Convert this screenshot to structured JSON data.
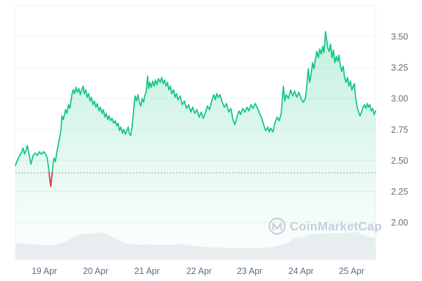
{
  "chart_data": {
    "type": "line",
    "title": "",
    "watermark": "CoinMarketCap",
    "colors": {
      "line_up": "#16C784",
      "line_down": "#EA3943",
      "area_fill_top": "rgba(22,199,132,0.26)",
      "area_fill_mid": "rgba(22,199,132,0.07)",
      "area_fill_bottom": "rgba(22,199,132,0.01)",
      "grid": "#EFF2F5",
      "axis_label": "#616E85",
      "reference_dotted": "#8B919E",
      "volume_fill": "#EDEFF2",
      "watermark": "#C7CEDB",
      "background": "#FFFFFF"
    },
    "x_axis": {
      "ticks": [
        {
          "label": "19 Apr",
          "position": 0.0801
        },
        {
          "label": "20 Apr",
          "position": 0.2227
        },
        {
          "label": "21 Apr",
          "position": 0.3652
        },
        {
          "label": "22 Apr",
          "position": 0.5098
        },
        {
          "label": "23 Apr",
          "position": 0.6504
        },
        {
          "label": "24 Apr",
          "position": 0.793
        },
        {
          "label": "25 Apr",
          "position": 0.9336
        }
      ]
    },
    "y_axis": {
      "gridline_values": [
        3.75,
        3.5,
        3.25,
        3.0,
        2.75,
        2.5,
        2.25,
        2.0
      ],
      "ticks": [
        {
          "label": "3.50",
          "value": 3.5
        },
        {
          "label": "3.25",
          "value": 3.25
        },
        {
          "label": "3.00",
          "value": 3.0
        },
        {
          "label": "2.75",
          "value": 2.75
        },
        {
          "label": "2.50",
          "value": 2.5
        },
        {
          "label": "2.25",
          "value": 2.25
        },
        {
          "label": "2.00",
          "value": 2.0
        }
      ]
    },
    "reference_line": {
      "value": 2.4,
      "style": "dotted"
    },
    "series": [
      {
        "name": "price",
        "points": [
          [
            0.0,
            2.46
          ],
          [
            0.004,
            2.49
          ],
          [
            0.01,
            2.53
          ],
          [
            0.016,
            2.56
          ],
          [
            0.021,
            2.6
          ],
          [
            0.025,
            2.55
          ],
          [
            0.029,
            2.58
          ],
          [
            0.033,
            2.62
          ],
          [
            0.039,
            2.53
          ],
          [
            0.043,
            2.47
          ],
          [
            0.049,
            2.54
          ],
          [
            0.055,
            2.56
          ],
          [
            0.061,
            2.54
          ],
          [
            0.066,
            2.57
          ],
          [
            0.072,
            2.55
          ],
          [
            0.078,
            2.57
          ],
          [
            0.084,
            2.55
          ],
          [
            0.088,
            2.52
          ],
          [
            0.092,
            2.44
          ],
          [
            0.096,
            2.33
          ],
          [
            0.098,
            2.29
          ],
          [
            0.101,
            2.37
          ],
          [
            0.104,
            2.46
          ],
          [
            0.107,
            2.52
          ],
          [
            0.111,
            2.49
          ],
          [
            0.115,
            2.57
          ],
          [
            0.119,
            2.63
          ],
          [
            0.123,
            2.69
          ],
          [
            0.127,
            2.76
          ],
          [
            0.129,
            2.86
          ],
          [
            0.133,
            2.83
          ],
          [
            0.139,
            2.91
          ],
          [
            0.143,
            2.88
          ],
          [
            0.147,
            2.95
          ],
          [
            0.151,
            2.92
          ],
          [
            0.156,
            3.02
          ],
          [
            0.16,
            3.07
          ],
          [
            0.164,
            3.04
          ],
          [
            0.168,
            3.09
          ],
          [
            0.172,
            3.05
          ],
          [
            0.176,
            3.08
          ],
          [
            0.18,
            3.03
          ],
          [
            0.184,
            3.07
          ],
          [
            0.188,
            3.1
          ],
          [
            0.191,
            3.04
          ],
          [
            0.195,
            3.07
          ],
          [
            0.199,
            3.01
          ],
          [
            0.203,
            3.04
          ],
          [
            0.207,
            2.98
          ],
          [
            0.211,
            3.01
          ],
          [
            0.215,
            2.95
          ],
          [
            0.219,
            2.98
          ],
          [
            0.223,
            2.93
          ],
          [
            0.227,
            2.96
          ],
          [
            0.232,
            2.9
          ],
          [
            0.236,
            2.93
          ],
          [
            0.24,
            2.88
          ],
          [
            0.244,
            2.91
          ],
          [
            0.248,
            2.85
          ],
          [
            0.252,
            2.88
          ],
          [
            0.256,
            2.83
          ],
          [
            0.26,
            2.86
          ],
          [
            0.264,
            2.82
          ],
          [
            0.268,
            2.84
          ],
          [
            0.273,
            2.8
          ],
          [
            0.277,
            2.82
          ],
          [
            0.281,
            2.78
          ],
          [
            0.285,
            2.8
          ],
          [
            0.289,
            2.74
          ],
          [
            0.293,
            2.77
          ],
          [
            0.297,
            2.72
          ],
          [
            0.301,
            2.75
          ],
          [
            0.305,
            2.71
          ],
          [
            0.309,
            2.74
          ],
          [
            0.313,
            2.77
          ],
          [
            0.316,
            2.72
          ],
          [
            0.32,
            2.7
          ],
          [
            0.324,
            2.78
          ],
          [
            0.328,
            2.9
          ],
          [
            0.332,
            3.02
          ],
          [
            0.336,
            2.98
          ],
          [
            0.34,
            3.03
          ],
          [
            0.344,
            2.97
          ],
          [
            0.348,
            2.94
          ],
          [
            0.352,
            3.0
          ],
          [
            0.356,
            2.97
          ],
          [
            0.359,
            3.02
          ],
          [
            0.363,
            3.06
          ],
          [
            0.367,
            3.18
          ],
          [
            0.37,
            3.08
          ],
          [
            0.373,
            3.13
          ],
          [
            0.377,
            3.09
          ],
          [
            0.381,
            3.14
          ],
          [
            0.385,
            3.1
          ],
          [
            0.389,
            3.15
          ],
          [
            0.393,
            3.11
          ],
          [
            0.397,
            3.16
          ],
          [
            0.402,
            3.13
          ],
          [
            0.406,
            3.17
          ],
          [
            0.41,
            3.12
          ],
          [
            0.414,
            3.15
          ],
          [
            0.418,
            3.1
          ],
          [
            0.422,
            3.13
          ],
          [
            0.426,
            3.07
          ],
          [
            0.43,
            3.1
          ],
          [
            0.434,
            3.04
          ],
          [
            0.439,
            3.07
          ],
          [
            0.443,
            3.01
          ],
          [
            0.447,
            3.04
          ],
          [
            0.451,
            2.99
          ],
          [
            0.457,
            3.02
          ],
          [
            0.463,
            2.95
          ],
          [
            0.469,
            2.98
          ],
          [
            0.475,
            2.92
          ],
          [
            0.481,
            2.95
          ],
          [
            0.487,
            2.89
          ],
          [
            0.492,
            2.93
          ],
          [
            0.498,
            2.88
          ],
          [
            0.504,
            2.91
          ],
          [
            0.51,
            2.85
          ],
          [
            0.516,
            2.89
          ],
          [
            0.521,
            2.84
          ],
          [
            0.527,
            2.88
          ],
          [
            0.533,
            2.94
          ],
          [
            0.539,
            2.91
          ],
          [
            0.545,
            2.98
          ],
          [
            0.551,
            3.03
          ],
          [
            0.555,
            2.99
          ],
          [
            0.559,
            3.04
          ],
          [
            0.563,
            3.01
          ],
          [
            0.568,
            3.03
          ],
          [
            0.574,
            2.97
          ],
          [
            0.58,
            2.93
          ],
          [
            0.586,
            2.96
          ],
          [
            0.592,
            2.89
          ],
          [
            0.598,
            2.92
          ],
          [
            0.604,
            2.83
          ],
          [
            0.609,
            2.79
          ],
          [
            0.613,
            2.83
          ],
          [
            0.617,
            2.87
          ],
          [
            0.621,
            2.9
          ],
          [
            0.625,
            2.87
          ],
          [
            0.631,
            2.92
          ],
          [
            0.637,
            2.89
          ],
          [
            0.643,
            2.93
          ],
          [
            0.648,
            2.9
          ],
          [
            0.654,
            2.95
          ],
          [
            0.66,
            2.92
          ],
          [
            0.666,
            2.96
          ],
          [
            0.672,
            2.92
          ],
          [
            0.678,
            2.88
          ],
          [
            0.684,
            2.84
          ],
          [
            0.689,
            2.79
          ],
          [
            0.695,
            2.74
          ],
          [
            0.701,
            2.77
          ],
          [
            0.705,
            2.73
          ],
          [
            0.709,
            2.76
          ],
          [
            0.715,
            2.73
          ],
          [
            0.721,
            2.81
          ],
          [
            0.727,
            2.85
          ],
          [
            0.732,
            2.82
          ],
          [
            0.738,
            2.88
          ],
          [
            0.744,
            3.1
          ],
          [
            0.748,
            2.98
          ],
          [
            0.752,
            3.03
          ],
          [
            0.758,
            3.0
          ],
          [
            0.764,
            3.07
          ],
          [
            0.77,
            3.02
          ],
          [
            0.775,
            3.06
          ],
          [
            0.781,
            3.01
          ],
          [
            0.787,
            3.05
          ],
          [
            0.793,
            3.0
          ],
          [
            0.799,
            2.97
          ],
          [
            0.805,
            3.0
          ],
          [
            0.809,
            3.1
          ],
          [
            0.813,
            3.24
          ],
          [
            0.817,
            3.13
          ],
          [
            0.821,
            3.2
          ],
          [
            0.825,
            3.29
          ],
          [
            0.829,
            3.24
          ],
          [
            0.833,
            3.32
          ],
          [
            0.837,
            3.38
          ],
          [
            0.841,
            3.33
          ],
          [
            0.845,
            3.4
          ],
          [
            0.849,
            3.36
          ],
          [
            0.853,
            3.42
          ],
          [
            0.856,
            3.37
          ],
          [
            0.859,
            3.45
          ],
          [
            0.861,
            3.54
          ],
          [
            0.864,
            3.48
          ],
          [
            0.867,
            3.41
          ],
          [
            0.871,
            3.38
          ],
          [
            0.875,
            3.44
          ],
          [
            0.879,
            3.33
          ],
          [
            0.883,
            3.39
          ],
          [
            0.887,
            3.29
          ],
          [
            0.891,
            3.34
          ],
          [
            0.895,
            3.3
          ],
          [
            0.898,
            3.35
          ],
          [
            0.902,
            3.27
          ],
          [
            0.906,
            3.22
          ],
          [
            0.91,
            3.26
          ],
          [
            0.914,
            3.17
          ],
          [
            0.918,
            3.13
          ],
          [
            0.922,
            3.17
          ],
          [
            0.926,
            3.1
          ],
          [
            0.93,
            3.14
          ],
          [
            0.934,
            3.07
          ],
          [
            0.938,
            3.1
          ],
          [
            0.941,
            3.12
          ],
          [
            0.945,
            3.0
          ],
          [
            0.949,
            2.93
          ],
          [
            0.953,
            2.89
          ],
          [
            0.957,
            2.86
          ],
          [
            0.961,
            2.89
          ],
          [
            0.965,
            2.93
          ],
          [
            0.969,
            2.95
          ],
          [
            0.973,
            2.92
          ],
          [
            0.977,
            2.96
          ],
          [
            0.98,
            2.93
          ],
          [
            0.984,
            2.95
          ],
          [
            0.988,
            2.9
          ],
          [
            0.992,
            2.92
          ],
          [
            0.996,
            2.87
          ],
          [
            1.0,
            2.9
          ]
        ]
      }
    ],
    "volume": {
      "points": [
        [
          0.0,
          0.6
        ],
        [
          0.02,
          0.58
        ],
        [
          0.04,
          0.56
        ],
        [
          0.06,
          0.54
        ],
        [
          0.08,
          0.53
        ],
        [
          0.1,
          0.52
        ],
        [
          0.115,
          0.56
        ],
        [
          0.13,
          0.62
        ],
        [
          0.145,
          0.7
        ],
        [
          0.16,
          0.8
        ],
        [
          0.175,
          0.88
        ],
        [
          0.19,
          0.92
        ],
        [
          0.205,
          0.94
        ],
        [
          0.22,
          0.93
        ],
        [
          0.23,
          0.96
        ],
        [
          0.237,
          1.0
        ],
        [
          0.245,
          0.95
        ],
        [
          0.26,
          0.88
        ],
        [
          0.275,
          0.78
        ],
        [
          0.29,
          0.68
        ],
        [
          0.305,
          0.6
        ],
        [
          0.32,
          0.56
        ],
        [
          0.34,
          0.54
        ],
        [
          0.36,
          0.55
        ],
        [
          0.38,
          0.53
        ],
        [
          0.4,
          0.54
        ],
        [
          0.42,
          0.53
        ],
        [
          0.44,
          0.54
        ],
        [
          0.452,
          0.58
        ],
        [
          0.465,
          0.55
        ],
        [
          0.485,
          0.52
        ],
        [
          0.505,
          0.49
        ],
        [
          0.525,
          0.46
        ],
        [
          0.545,
          0.44
        ],
        [
          0.565,
          0.45
        ],
        [
          0.585,
          0.43
        ],
        [
          0.605,
          0.44
        ],
        [
          0.625,
          0.43
        ],
        [
          0.645,
          0.42
        ],
        [
          0.665,
          0.44
        ],
        [
          0.685,
          0.43
        ],
        [
          0.705,
          0.45
        ],
        [
          0.72,
          0.48
        ],
        [
          0.73,
          0.52
        ],
        [
          0.74,
          0.56
        ],
        [
          0.75,
          0.58
        ],
        [
          0.76,
          0.63
        ],
        [
          0.77,
          0.74
        ],
        [
          0.78,
          0.79
        ],
        [
          0.79,
          0.81
        ],
        [
          0.8,
          0.84
        ],
        [
          0.81,
          0.88
        ],
        [
          0.82,
          0.91
        ],
        [
          0.83,
          0.93
        ],
        [
          0.845,
          0.92
        ],
        [
          0.86,
          0.94
        ],
        [
          0.875,
          0.95
        ],
        [
          0.89,
          0.94
        ],
        [
          0.905,
          0.95
        ],
        [
          0.92,
          0.96
        ],
        [
          0.935,
          0.98
        ],
        [
          0.943,
          1.0
        ],
        [
          0.952,
          0.97
        ],
        [
          0.962,
          0.9
        ],
        [
          0.972,
          0.85
        ],
        [
          0.982,
          0.82
        ],
        [
          0.992,
          0.8
        ],
        [
          1.0,
          0.78
        ]
      ]
    }
  }
}
